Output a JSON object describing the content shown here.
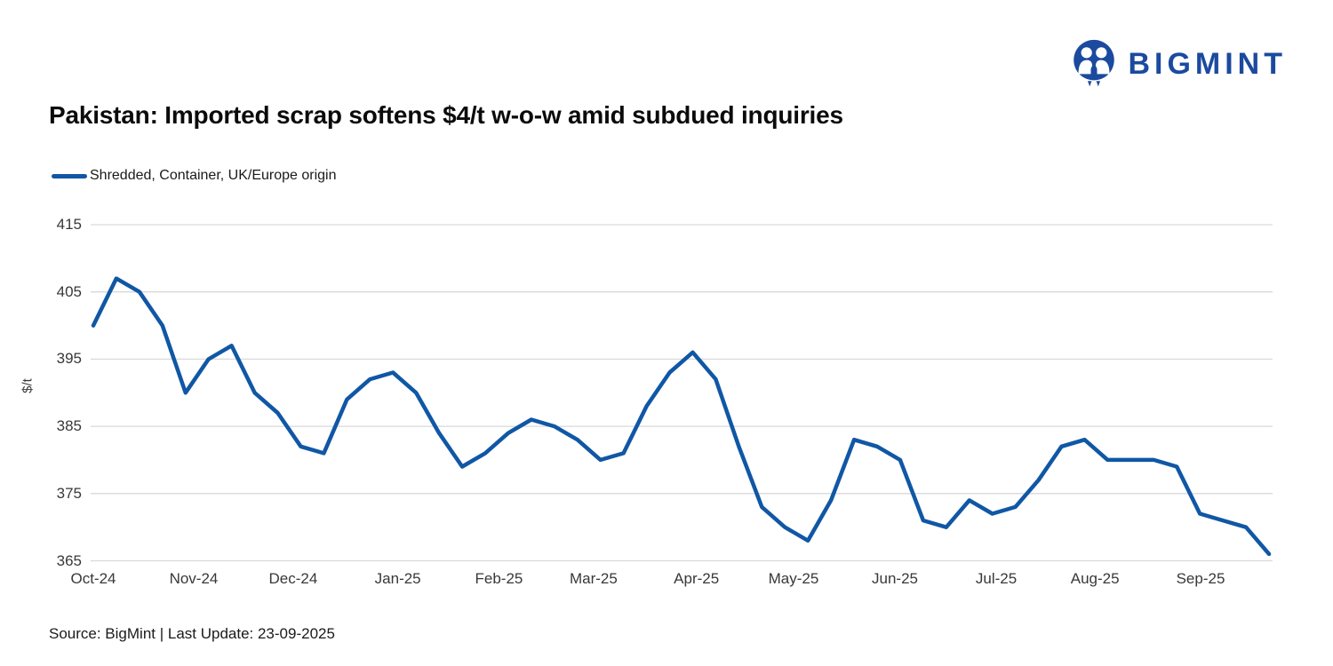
{
  "brand": {
    "name": "BIGMINT"
  },
  "header": {
    "title": "Pakistan: Imported scrap softens $4/t w-o-w amid subdued inquiries"
  },
  "legend": {
    "label": "Shredded, Container, UK/Europe origin"
  },
  "footer": {
    "source": "Source: BigMint | Last Update: 23-09-2025"
  },
  "colors": {
    "line": "#1057a5",
    "logo": "#1b4a9e",
    "grid": "#d9d9d9",
    "tick_text": "#383838"
  },
  "chart_data": {
    "type": "line",
    "title": "Pakistan: Imported scrap softens $4/t w-o-w amid subdued inquiries",
    "ylabel": "$/t",
    "xlabel": "",
    "ylim": [
      365,
      415
    ],
    "yticks": [
      365,
      375,
      385,
      395,
      405,
      415
    ],
    "grid": "horizontal",
    "legend_position": "top-left",
    "frequency": "weekly",
    "x_tick_labels": [
      "Oct-24",
      "Nov-24",
      "Dec-24",
      "Jan-25",
      "Feb-25",
      "Mar-25",
      "Apr-25",
      "May-25",
      "Jun-25",
      "Jul-25",
      "Aug-25",
      "Sep-25"
    ],
    "x_tick_positions": [
      0.0,
      0.0854,
      0.17,
      0.259,
      0.345,
      0.4255,
      0.513,
      0.5956,
      0.6818,
      0.768,
      0.852,
      0.9418
    ],
    "series": [
      {
        "name": "Shredded, Container, UK/Europe origin",
        "values": [
          400,
          407,
          405,
          400,
          390,
          395,
          397,
          390,
          387,
          382,
          381,
          389,
          392,
          393,
          390,
          384,
          379,
          381,
          384,
          386,
          385,
          383,
          380,
          381,
          388,
          393,
          396,
          392,
          382,
          373,
          370,
          368,
          374,
          383,
          382,
          380,
          371,
          370,
          374,
          372,
          373,
          377,
          382,
          383,
          380,
          380,
          380,
          379,
          372,
          371,
          370,
          366
        ]
      }
    ]
  }
}
